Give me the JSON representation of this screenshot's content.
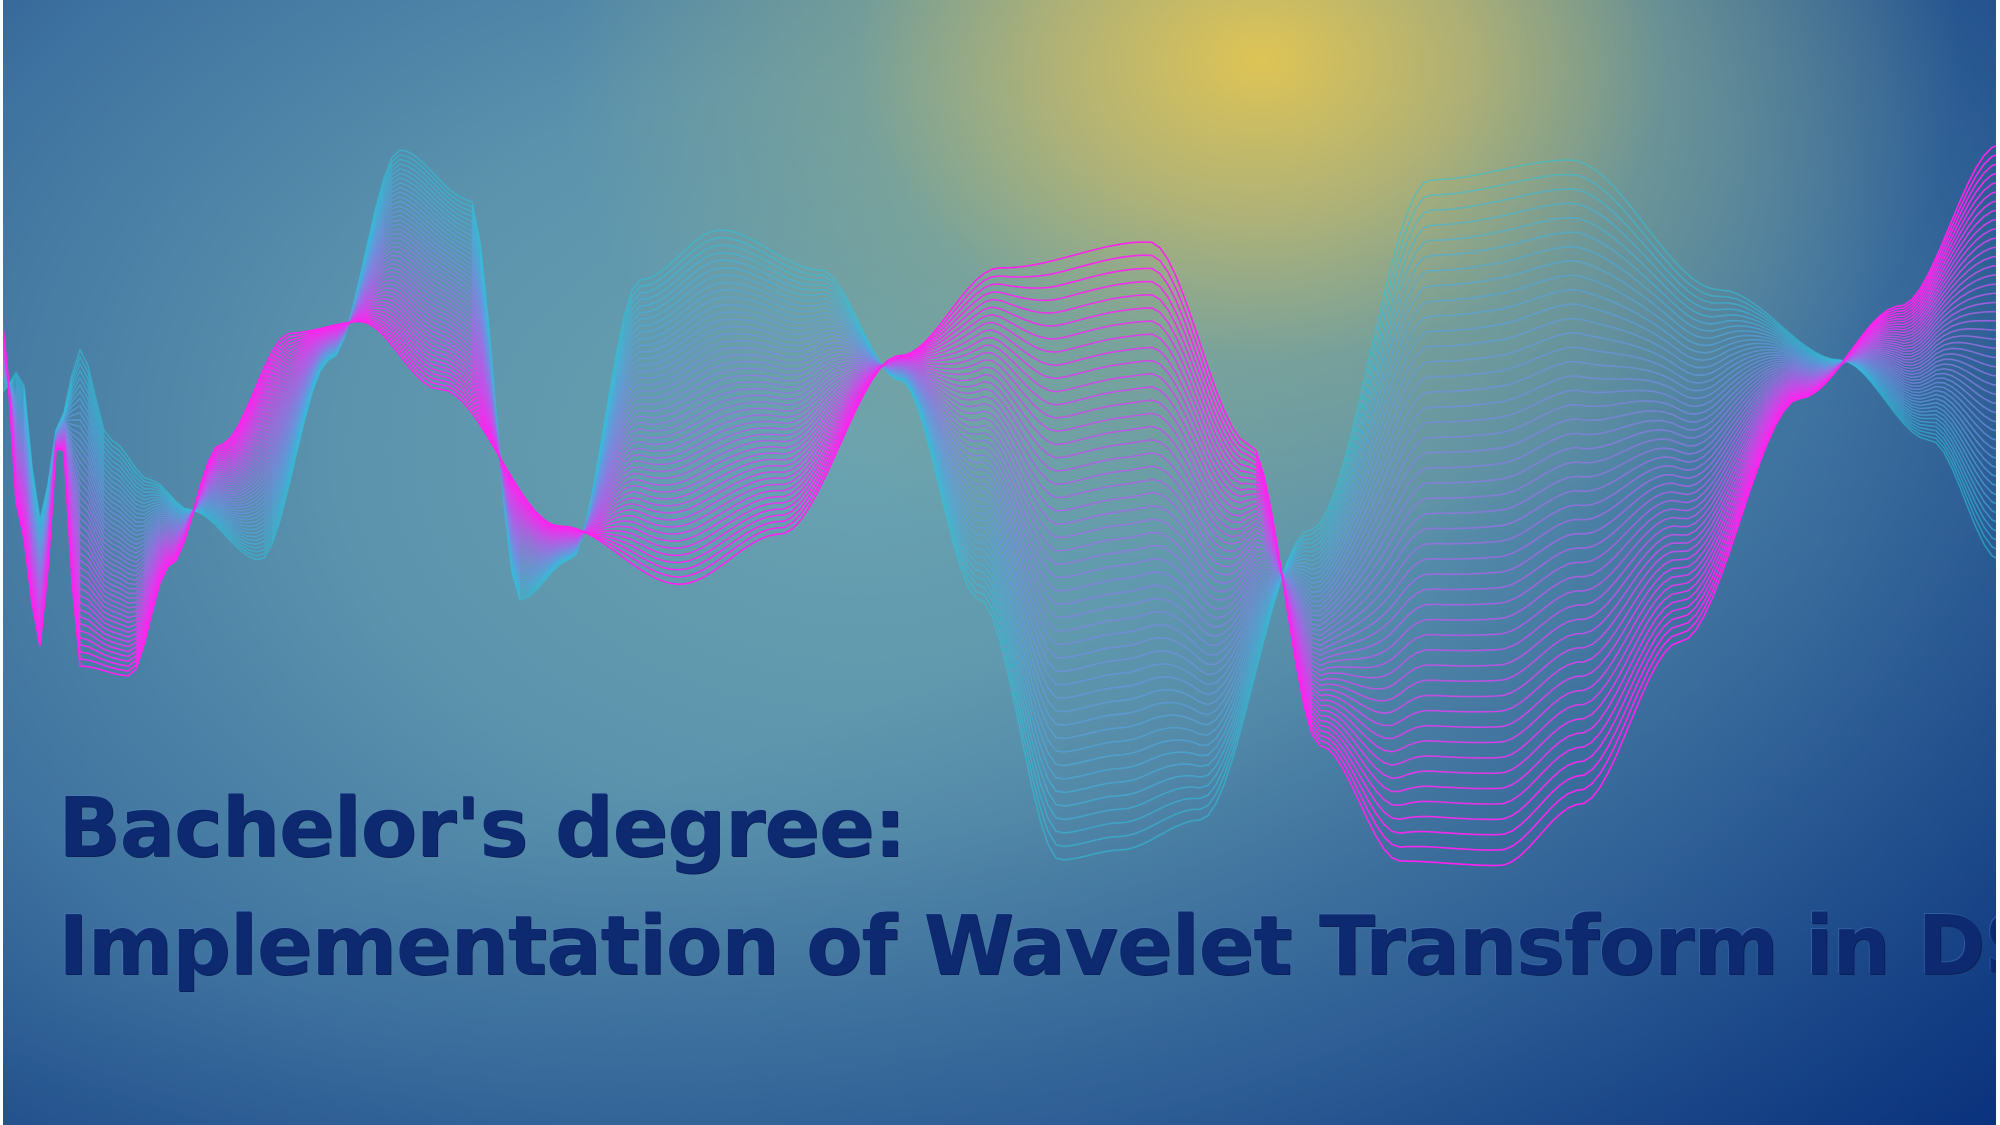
{
  "slide": {
    "title_line_1": "Bachelor's degree:",
    "title_line_2": "Implementation of Wavelet Transform in DSP"
  },
  "colors": {
    "title_text": "#0d2a70",
    "wave_cyan": "#2ec4dd",
    "wave_magenta": "#ff22ee",
    "glow_yellow": "#dec456",
    "background_blue": "#1d4a86"
  },
  "graphics": {
    "background": "gradient-glow",
    "decoration": "wave-ribbons"
  }
}
